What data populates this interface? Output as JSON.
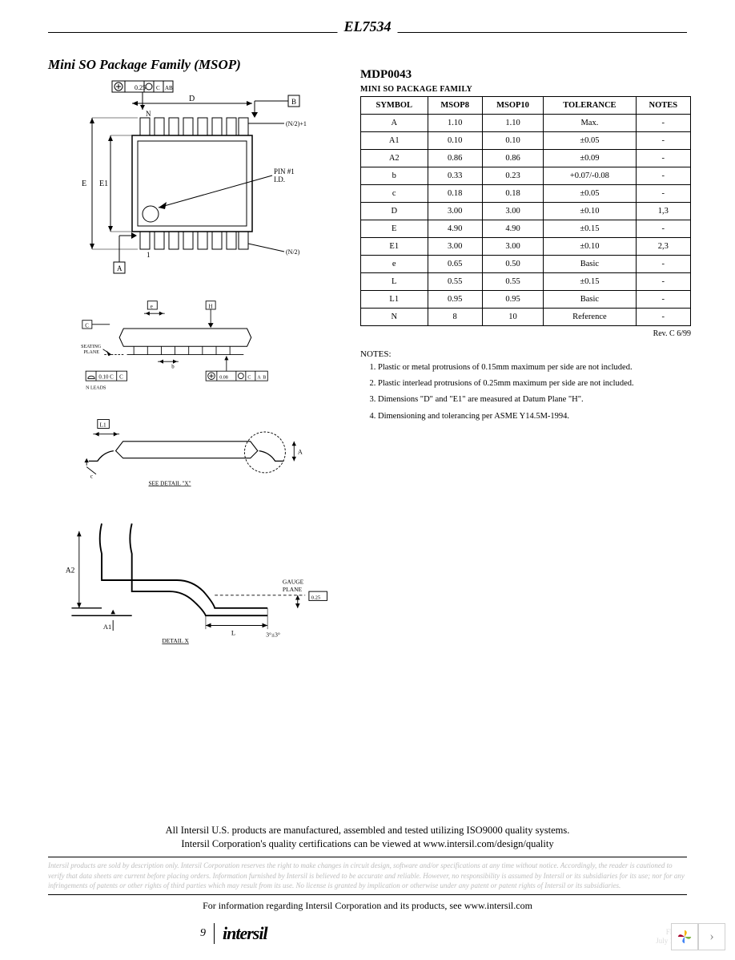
{
  "doc_title": "EL7534",
  "section_title": "Mini SO Package Family (MSOP)",
  "mdp_code": "MDP0043",
  "table_caption": "MINI SO PACKAGE FAMILY",
  "revision": "Rev. C 6/99",
  "table": {
    "columns": [
      "SYMBOL",
      "MSOP8",
      "MSOP10",
      "TOLERANCE",
      "NOTES"
    ],
    "rows": [
      [
        "A",
        "1.10",
        "1.10",
        "Max.",
        "-"
      ],
      [
        "A1",
        "0.10",
        "0.10",
        "±0.05",
        "-"
      ],
      [
        "A2",
        "0.86",
        "0.86",
        "±0.09",
        "-"
      ],
      [
        "b",
        "0.33",
        "0.23",
        "+0.07/-0.08",
        "-"
      ],
      [
        "c",
        "0.18",
        "0.18",
        "±0.05",
        "-"
      ],
      [
        "D",
        "3.00",
        "3.00",
        "±0.10",
        "1,3"
      ],
      [
        "E",
        "4.90",
        "4.90",
        "±0.15",
        "-"
      ],
      [
        "E1",
        "3.00",
        "3.00",
        "±0.10",
        "2,3"
      ],
      [
        "e",
        "0.65",
        "0.50",
        "Basic",
        "-"
      ],
      [
        "L",
        "0.55",
        "0.55",
        "±0.15",
        "-"
      ],
      [
        "L1",
        "0.95",
        "0.95",
        "Basic",
        "-"
      ],
      [
        "N",
        "8",
        "10",
        "Reference",
        "-"
      ]
    ]
  },
  "notes_title": "NOTES:",
  "notes": [
    "Plastic or metal protrusions of 0.15mm maximum per side are not included.",
    "Plastic interlead protrusions of 0.25mm maximum per side are not included.",
    "Dimensions \"D\" and \"E1\" are measured at Datum Plane \"H\".",
    "Dimensioning and tolerancing per ASME Y14.5M-1994."
  ],
  "diagram_labels": {
    "top_gdt": "0.25",
    "top_gdt_ref": "C A B",
    "dim_D": "D",
    "dim_N": "N",
    "dim_E": "E",
    "dim_E1": "E1",
    "pin1": "PIN #1",
    "pin1_id": "I.D.",
    "half_n_front": "(N/2)+1",
    "half_n_back": "(N/2)",
    "one": "1",
    "datum_A": "A",
    "datum_B": "B",
    "datum_C": "C",
    "datum_H": "H",
    "dim_e": "e",
    "seating": "SEATING",
    "plane": "PLANE",
    "dim_b": "b",
    "flat_010c": "0.10 C",
    "nleads": "N LEADS",
    "bottom_gdt": "0.08",
    "bottom_gdt_ref": "C A B",
    "dim_L1": "L1",
    "dim_A": "A",
    "dim_c": "c",
    "see_detail": "SEE DETAIL \"X\"",
    "dim_A2": "A2",
    "dim_A1": "A1",
    "dim_L": "L",
    "angle": "3°±3°",
    "gauge": "GAUGE",
    "gauge_plane": "PLANE",
    "gauge_025": "0.25",
    "detailx": "DETAIL X"
  },
  "footer": {
    "line1": "All Intersil U.S. products are manufactured, assembled and tested utilizing ISO9000 quality systems.",
    "line2": "Intersil Corporation's quality certifications can be viewed at www.intersil.com/design/quality",
    "disclaimer": "Intersil products are sold by description only. Intersil Corporation reserves the right to make changes in circuit design, software and/or specifications at any time without notice. Accordingly, the reader is cautioned to verify that data sheets are current before placing orders. Information furnished by Intersil is believed to be accurate and reliable. However, no responsibility is assumed by Intersil or its subsidiaries for its use; nor for any infringements of patents or other rights of third parties which may result from its use. No license is granted by implication or otherwise under any patent or patent rights of Intersil or its subsidiaries.",
    "info": "For information regarding Intersil Corporation and its products, see www.intersil.com",
    "page_num": "9",
    "brand": "intersil",
    "doc_code": "FN7431.8",
    "doc_date": "July 12, 2006"
  },
  "colors": {
    "text": "#000000",
    "bg": "#ffffff",
    "faded": "#bdbdbd",
    "faded2": "#dcdcdc",
    "logo_y": "#f4b400",
    "logo_g": "#7cb342",
    "logo_b": "#4285f4",
    "logo_r": "#a6002b"
  }
}
